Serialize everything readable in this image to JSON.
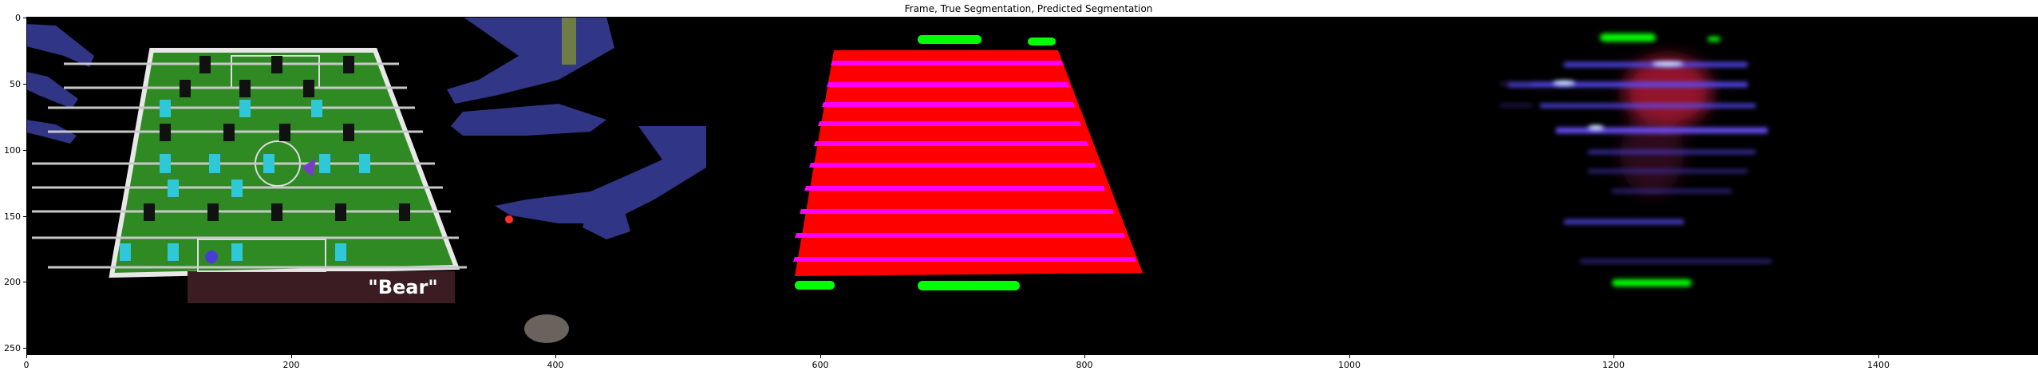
{
  "figure": {
    "title": "Frame, True Segmentation, Predicted Segmentation",
    "image_size": [
      1536,
      256
    ],
    "x_ticks": [
      "0",
      "200",
      "400",
      "600",
      "800",
      "1000",
      "1200",
      "1400"
    ],
    "y_ticks": [
      "0",
      "50",
      "100",
      "150",
      "200",
      "250"
    ],
    "panels": [
      "Frame",
      "True Segmentation",
      "Predicted Segmentation"
    ],
    "table_logo_text": "\"Bear\"",
    "colors": {
      "background": "#000000",
      "table_field": "#2f8a24",
      "player_cyan": "#2ec8d8",
      "player_black": "#111111",
      "hands": "#3a3f9e",
      "seg_red": "#ff0000",
      "seg_magenta": "#ff00ff",
      "seg_green": "#00ff00",
      "pred_blue": "#5a4cff",
      "pred_red": "#c41a3a"
    }
  }
}
